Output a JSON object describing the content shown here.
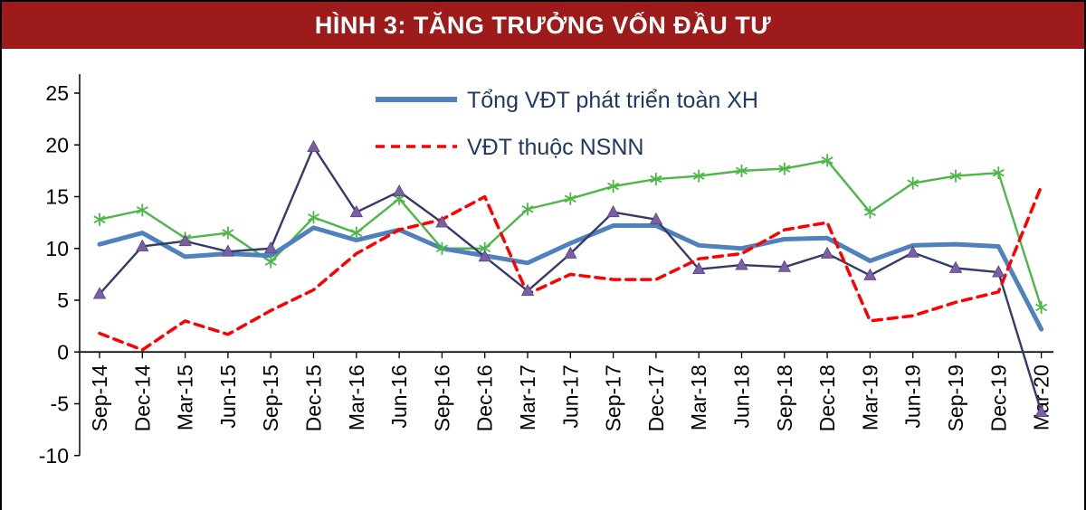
{
  "header": {
    "title": "HÌNH 3: TĂNG TRƯỞNG VỐN ĐẦU TƯ",
    "bg_color": "#9E1B1B",
    "text_color": "#FFFFFF"
  },
  "chart_data": {
    "type": "line",
    "title": "HÌNH 3: TĂNG TRƯỞNG VỐN ĐẦU TƯ",
    "categories": [
      "Sep-14",
      "Dec-14",
      "Mar-15",
      "Jun-15",
      "Sep-15",
      "Dec-15",
      "Mar-16",
      "Jun-16",
      "Sep-16",
      "Dec-16",
      "Mar-17",
      "Jun-17",
      "Sep-17",
      "Dec-17",
      "Mar-18",
      "Jun-18",
      "Sep-18",
      "Dec-18",
      "Mar-19",
      "Jun-19",
      "Sep-19",
      "Dec-19",
      "Mar-20"
    ],
    "ylim": [
      -10,
      25
    ],
    "yticks": [
      25,
      20,
      15,
      10,
      5,
      0,
      -5,
      -10
    ],
    "grid": false,
    "legend_position": "top-center-inside",
    "axis_color": "#000000",
    "tick_text_color": "#000000",
    "legend_text_color": "#1F3864",
    "series": [
      {
        "id": "tong-vdt-toan-xh",
        "name": "Tổng VĐT phát triển toàn XH",
        "color": "#4F81BD",
        "line_style": "solid",
        "line_width": 5,
        "marker": "none",
        "in_legend": true,
        "values": [
          10.4,
          11.5,
          9.2,
          9.5,
          9.3,
          12.0,
          10.8,
          11.8,
          10.0,
          9.3,
          8.6,
          10.5,
          12.2,
          12.2,
          10.3,
          10.0,
          10.9,
          11.0,
          8.8,
          10.3,
          10.4,
          10.2,
          2.2
        ]
      },
      {
        "id": "vdt-thuoc-nsnn",
        "name": "VĐT thuộc NSNN",
        "color": "#FF0000",
        "line_style": "dashed",
        "line_width": 3.5,
        "marker": "none",
        "in_legend": true,
        "values": [
          1.8,
          0.2,
          3.0,
          1.7,
          4.0,
          6.0,
          9.5,
          11.8,
          12.8,
          15.0,
          5.6,
          7.5,
          7.0,
          7.0,
          9.0,
          9.5,
          11.8,
          12.5,
          3.0,
          3.5,
          4.8,
          5.8,
          16.0
        ]
      },
      {
        "id": "green-star-series",
        "name": "",
        "color": "#4DB748",
        "line_style": "solid",
        "line_width": 2.4,
        "marker": "star",
        "marker_color": "#4DB748",
        "in_legend": false,
        "values": [
          12.8,
          13.7,
          11.0,
          11.5,
          8.7,
          13.0,
          11.5,
          14.8,
          10.0,
          10.0,
          13.8,
          14.8,
          16.0,
          16.7,
          17.0,
          17.5,
          17.7,
          18.5,
          13.5,
          16.3,
          17.0,
          17.3,
          4.3
        ]
      },
      {
        "id": "navy-triangle-series",
        "name": "",
        "color": "#333B6B",
        "line_style": "solid",
        "line_width": 2.4,
        "marker": "triangle",
        "marker_color": "#7A5FA6",
        "in_legend": false,
        "values": [
          5.6,
          10.2,
          10.7,
          9.7,
          10.0,
          19.8,
          13.5,
          15.5,
          12.5,
          9.2,
          5.9,
          9.5,
          13.5,
          12.8,
          8.0,
          8.4,
          8.2,
          9.5,
          7.4,
          9.6,
          8.1,
          7.7,
          -5.8
        ]
      }
    ]
  }
}
